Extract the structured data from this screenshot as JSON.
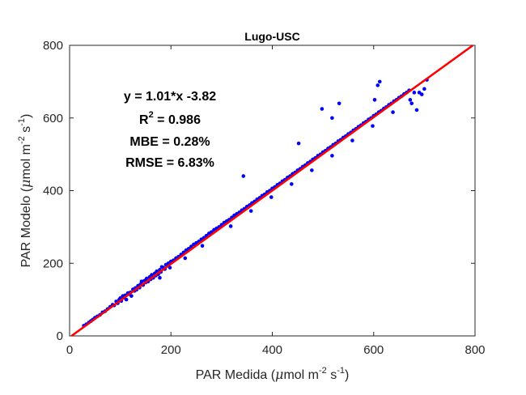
{
  "chart_data": {
    "type": "scatter",
    "title": "Lugo-USC",
    "xlabel": {
      "prefix": "PAR Medida (",
      "mu": "μ",
      "unit": "mol m",
      "exp1": "-2",
      "mid": " s",
      "exp2": "-1",
      "suffix": ")"
    },
    "ylabel": {
      "prefix": "PAR Modelo (",
      "mu": "μ",
      "unit": "mol m",
      "exp1": "-2",
      "mid": " s",
      "exp2": "-1",
      "suffix": ")"
    },
    "xlim": [
      0,
      800
    ],
    "ylim": [
      0,
      800
    ],
    "xticks": [
      "0",
      "200",
      "400",
      "600",
      "800"
    ],
    "yticks": [
      "0",
      "200",
      "400",
      "600",
      "800"
    ],
    "grid": false,
    "fit_line": {
      "slope": 1.01,
      "intercept": -3.82,
      "color": "#ff0000"
    },
    "annotations": {
      "equation": "y = 1.01*x -3.82",
      "r2_base": "R",
      "r2_sup": "2",
      "r2_value": " = 0.986",
      "mbe": "MBE = 0.28%",
      "rmse": "RMSE = 6.83%"
    },
    "point_color": "#0000ff",
    "points": [
      [
        28,
        28
      ],
      [
        33,
        32
      ],
      [
        38,
        37
      ],
      [
        42,
        41
      ],
      [
        46,
        45
      ],
      [
        50,
        50
      ],
      [
        55,
        54
      ],
      [
        60,
        58
      ],
      [
        65,
        65
      ],
      [
        70,
        68
      ],
      [
        75,
        74
      ],
      [
        80,
        80
      ],
      [
        85,
        86
      ],
      [
        88,
        84
      ],
      [
        92,
        95
      ],
      [
        95,
        90
      ],
      [
        98,
        100
      ],
      [
        100,
        104
      ],
      [
        102,
        96
      ],
      [
        105,
        110
      ],
      [
        108,
        105
      ],
      [
        110,
        112
      ],
      [
        112,
        100
      ],
      [
        115,
        118
      ],
      [
        118,
        115
      ],
      [
        120,
        120
      ],
      [
        122,
        110
      ],
      [
        125,
        128
      ],
      [
        128,
        124
      ],
      [
        130,
        132
      ],
      [
        132,
        127
      ],
      [
        135,
        138
      ],
      [
        138,
        133
      ],
      [
        140,
        142
      ],
      [
        142,
        150
      ],
      [
        145,
        140
      ],
      [
        148,
        152
      ],
      [
        150,
        147
      ],
      [
        152,
        158
      ],
      [
        155,
        150
      ],
      [
        158,
        162
      ],
      [
        160,
        156
      ],
      [
        162,
        168
      ],
      [
        165,
        160
      ],
      [
        168,
        172
      ],
      [
        170,
        166
      ],
      [
        172,
        178
      ],
      [
        175,
        170
      ],
      [
        178,
        182
      ],
      [
        180,
        176
      ],
      [
        182,
        190
      ],
      [
        185,
        188
      ],
      [
        188,
        184
      ],
      [
        190,
        196
      ],
      [
        195,
        200
      ],
      [
        200,
        205
      ],
      [
        205,
        208
      ],
      [
        210,
        214
      ],
      [
        215,
        218
      ],
      [
        220,
        224
      ],
      [
        225,
        230
      ],
      [
        230,
        236
      ],
      [
        235,
        240
      ],
      [
        240,
        246
      ],
      [
        245,
        252
      ],
      [
        250,
        256
      ],
      [
        255,
        260
      ],
      [
        260,
        266
      ],
      [
        265,
        270
      ],
      [
        270,
        276
      ],
      [
        275,
        282
      ],
      [
        280,
        286
      ],
      [
        285,
        292
      ],
      [
        290,
        296
      ],
      [
        295,
        300
      ],
      [
        300,
        306
      ],
      [
        305,
        312
      ],
      [
        310,
        316
      ],
      [
        315,
        320
      ],
      [
        320,
        326
      ],
      [
        325,
        332
      ],
      [
        330,
        336
      ],
      [
        335,
        340
      ],
      [
        340,
        346
      ],
      [
        343,
        440
      ],
      [
        345,
        350
      ],
      [
        350,
        356
      ],
      [
        355,
        360
      ],
      [
        360,
        366
      ],
      [
        365,
        370
      ],
      [
        370,
        376
      ],
      [
        375,
        380
      ],
      [
        380,
        386
      ],
      [
        385,
        390
      ],
      [
        390,
        396
      ],
      [
        395,
        400
      ],
      [
        400,
        406
      ],
      [
        405,
        410
      ],
      [
        410,
        416
      ],
      [
        415,
        420
      ],
      [
        420,
        426
      ],
      [
        425,
        430
      ],
      [
        430,
        436
      ],
      [
        435,
        440
      ],
      [
        440,
        446
      ],
      [
        445,
        450
      ],
      [
        450,
        456
      ],
      [
        452,
        530
      ],
      [
        455,
        460
      ],
      [
        460,
        466
      ],
      [
        465,
        470
      ],
      [
        470,
        476
      ],
      [
        475,
        480
      ],
      [
        480,
        486
      ],
      [
        485,
        490
      ],
      [
        490,
        496
      ],
      [
        495,
        500
      ],
      [
        498,
        625
      ],
      [
        500,
        506
      ],
      [
        505,
        510
      ],
      [
        510,
        516
      ],
      [
        515,
        520
      ],
      [
        518,
        600
      ],
      [
        520,
        526
      ],
      [
        525,
        530
      ],
      [
        530,
        536
      ],
      [
        532,
        640
      ],
      [
        535,
        540
      ],
      [
        540,
        546
      ],
      [
        545,
        550
      ],
      [
        550,
        556
      ],
      [
        555,
        560
      ],
      [
        560,
        566
      ],
      [
        565,
        570
      ],
      [
        570,
        576
      ],
      [
        575,
        580
      ],
      [
        580,
        586
      ],
      [
        585,
        590
      ],
      [
        590,
        596
      ],
      [
        595,
        600
      ],
      [
        600,
        606
      ],
      [
        602,
        650
      ],
      [
        605,
        610
      ],
      [
        608,
        690
      ],
      [
        610,
        616
      ],
      [
        612,
        700
      ],
      [
        615,
        620
      ],
      [
        620,
        626
      ],
      [
        625,
        630
      ],
      [
        630,
        636
      ],
      [
        635,
        640
      ],
      [
        640,
        646
      ],
      [
        645,
        650
      ],
      [
        650,
        656
      ],
      [
        655,
        660
      ],
      [
        660,
        666
      ],
      [
        665,
        670
      ],
      [
        670,
        676
      ],
      [
        675,
        640
      ],
      [
        680,
        670
      ],
      [
        685,
        622
      ],
      [
        690,
        670
      ],
      [
        695,
        665
      ],
      [
        700,
        680
      ],
      [
        705,
        705
      ],
      [
        178,
        160
      ],
      [
        198,
        188
      ],
      [
        228,
        214
      ],
      [
        262,
        248
      ],
      [
        318,
        302
      ],
      [
        358,
        344
      ],
      [
        398,
        382
      ],
      [
        438,
        418
      ],
      [
        478,
        456
      ],
      [
        518,
        496
      ],
      [
        558,
        538
      ],
      [
        598,
        578
      ],
      [
        638,
        616
      ],
      [
        672,
        650
      ]
    ]
  }
}
